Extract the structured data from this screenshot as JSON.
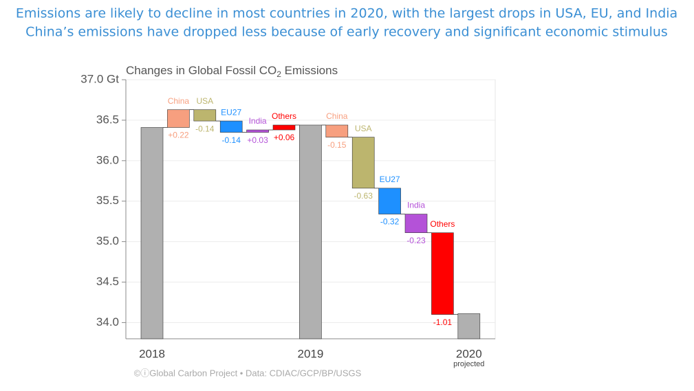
{
  "header": {
    "lines": [
      "Emissions are likely to decline in most countries in 2020, with the largest drops in USA, EU, and India",
      "China’s emissions have dropped less because of early recovery and significant economic stimulus"
    ]
  },
  "chart_data": {
    "type": "waterfall",
    "title": "Changes in Global Fossil CO",
    "title_subscript": "2",
    "title_end": " Emissions",
    "totals": {
      "categories": [
        "2018",
        "2019",
        "2020"
      ],
      "values": [
        36.41,
        36.44,
        34.11
      ],
      "color": "#b0b0b0"
    },
    "total_note": "projected",
    "changes": [
      {
        "names": [
          "China",
          "USA",
          "EU27",
          "India",
          "Others"
        ],
        "colors": [
          "#f79f7f",
          "#bcb56e",
          "#1e90ff",
          "#b452d8",
          "#ff0000"
        ],
        "values": [
          0.22,
          -0.14,
          -0.14,
          0.03,
          0.06
        ],
        "value_labels": [
          "+0.22",
          "-0.14",
          "-0.14",
          "+0.03",
          "+0.06"
        ]
      },
      {
        "names": [
          "China",
          "USA",
          "EU27",
          "India",
          "Others"
        ],
        "colors": [
          "#f79f7f",
          "#bcb56e",
          "#1e90ff",
          "#b452d8",
          "#ff0000"
        ],
        "values": [
          -0.15,
          -0.63,
          -0.32,
          -0.23,
          -1.01
        ],
        "value_labels": [
          "-0.15",
          "-0.63",
          "-0.32",
          "-0.23",
          "-1.01"
        ]
      }
    ],
    "ylim": [
      33.8,
      37.0
    ],
    "yticks": [
      {
        "value": 34.0,
        "label": "34.0"
      },
      34.5,
      {
        "value": 35.0,
        "label": "35.0"
      },
      35.5,
      {
        "value": 36.0,
        "label": "36.0"
      },
      36.5,
      {
        "value": 37.0,
        "label": "37.0 Gt"
      }
    ],
    "grid": true,
    "source": "©ⓘGlobal Carbon Project  •  Data: CDIAC/GCP/BP/USGS"
  }
}
